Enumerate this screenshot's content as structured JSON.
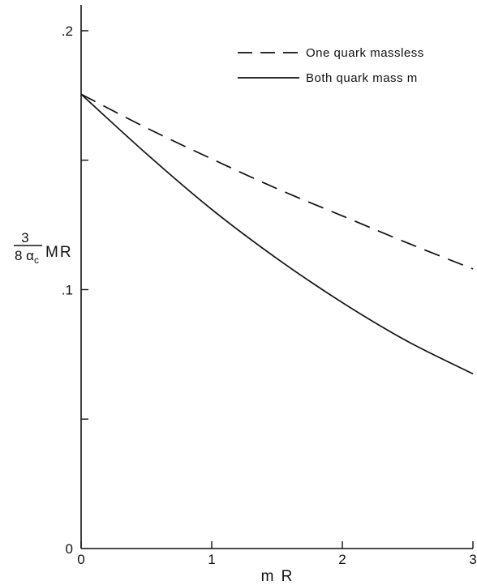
{
  "chart_data": {
    "type": "line",
    "title": "",
    "xlabel": "m R",
    "ylabel": {
      "numerator": "3",
      "denominator": "8 α",
      "denominator_sub": "c",
      "suffix": "MR"
    },
    "xlim": [
      0,
      3
    ],
    "ylim": [
      0,
      0.21
    ],
    "x_ticks": [
      {
        "value": 0,
        "label": "0"
      },
      {
        "value": 1,
        "label": "1"
      },
      {
        "value": 2,
        "label": "2"
      },
      {
        "value": 3,
        "label": "3"
      }
    ],
    "y_ticks": [
      {
        "value": 0,
        "label": "0"
      },
      {
        "value": 0.05,
        "label": ""
      },
      {
        "value": 0.1,
        "label": ".1"
      },
      {
        "value": 0.15,
        "label": ""
      },
      {
        "value": 0.2,
        "label": ".2"
      }
    ],
    "grid": false,
    "legend_position": "top-right",
    "series": [
      {
        "name": "One quark massless",
        "dash": "dashed",
        "color": "#111111",
        "x": [
          0,
          0.5,
          1,
          1.5,
          2,
          2.5,
          3
        ],
        "y": [
          0.1755,
          0.1625,
          0.1505,
          0.139,
          0.1285,
          0.118,
          0.108
        ]
      },
      {
        "name": "Both quark mass m",
        "dash": "solid",
        "color": "#111111",
        "x": [
          0,
          0.5,
          1,
          1.5,
          2,
          2.5,
          3
        ],
        "y": [
          0.1755,
          0.1525,
          0.131,
          0.112,
          0.095,
          0.08,
          0.0675
        ]
      }
    ]
  }
}
